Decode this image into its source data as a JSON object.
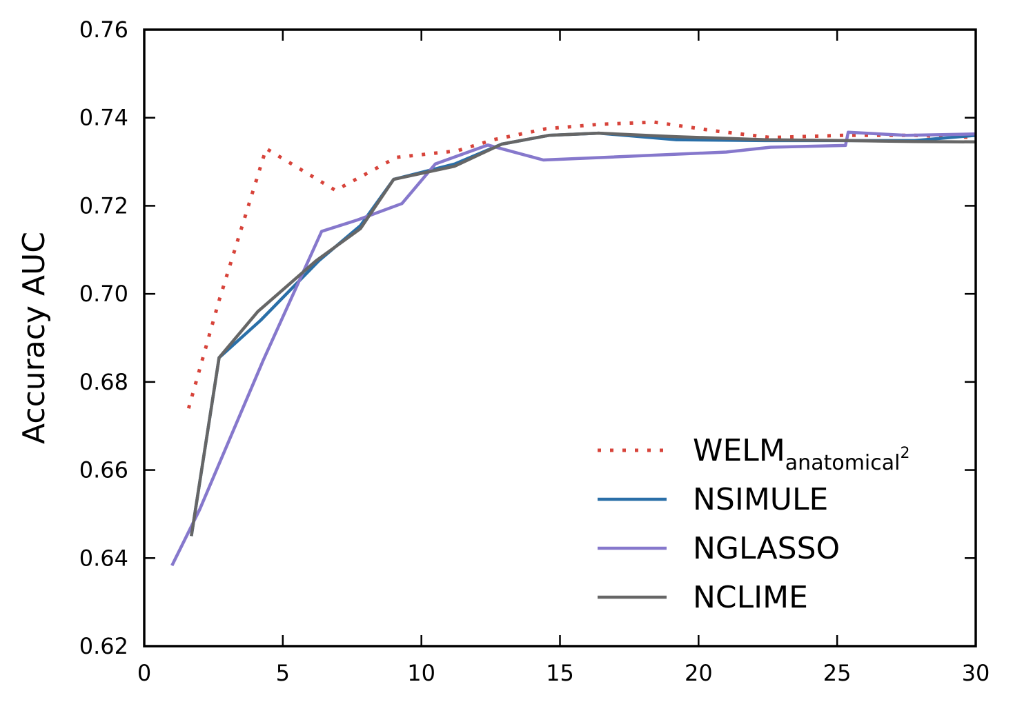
{
  "chart_data": {
    "type": "line",
    "title": "",
    "xlabel": "",
    "ylabel": "Accuracy AUC",
    "xlim": [
      0,
      30
    ],
    "ylim": [
      0.62,
      0.76
    ],
    "xticks": [
      0,
      5,
      10,
      15,
      20,
      25,
      30
    ],
    "xtick_labels": [
      "0",
      "5",
      "10",
      "15",
      "20",
      "25",
      "30"
    ],
    "yticks": [
      0.62,
      0.64,
      0.66,
      0.68,
      0.7,
      0.72,
      0.74,
      0.76
    ],
    "ytick_labels": [
      "0.62",
      "0.64",
      "0.66",
      "0.68",
      "0.70",
      "0.72",
      "0.74",
      "0.76"
    ],
    "grid": false,
    "legend_position": "lower-right",
    "series": [
      {
        "name": "WELM",
        "name_subscript": "anatomical",
        "name_superscript": "2",
        "color": "#d7433a",
        "style": "dotted",
        "x": [
          1.6,
          2.7,
          4.4,
          6.9,
          9.1,
          11.3,
          12.6,
          14.5,
          16.4,
          18.4,
          20.6,
          22.6,
          25.2,
          27.8,
          30.0
        ],
        "y": [
          0.674,
          0.6985,
          0.733,
          0.7235,
          0.731,
          0.7325,
          0.735,
          0.7375,
          0.7385,
          0.739,
          0.737,
          0.7355,
          0.736,
          0.736,
          0.7355
        ]
      },
      {
        "name": "NSIMULE",
        "color": "#2a6fa8",
        "style": "solid",
        "x": [
          1.7,
          2.7,
          4.2,
          6.3,
          7.8,
          9.0,
          11.2,
          12.9,
          14.6,
          16.4,
          19.2,
          22.4,
          25.4,
          27.8,
          30.0
        ],
        "y": [
          0.645,
          0.6855,
          0.694,
          0.7075,
          0.7155,
          0.726,
          0.7295,
          0.734,
          0.736,
          0.7365,
          0.735,
          0.7348,
          0.7348,
          0.7348,
          0.736
        ]
      },
      {
        "name": "NGLASSO",
        "color": "#8678cc",
        "style": "solid",
        "x": [
          1.0,
          2.0,
          4.3,
          6.4,
          7.7,
          9.3,
          10.5,
          12.4,
          14.4,
          16.6,
          21.0,
          22.6,
          25.3,
          25.4,
          27.5,
          30.0
        ],
        "y": [
          0.6383,
          0.651,
          0.685,
          0.7142,
          0.7168,
          0.7205,
          0.7295,
          0.7338,
          0.7304,
          0.731,
          0.7322,
          0.7333,
          0.7337,
          0.7367,
          0.736,
          0.7363
        ]
      },
      {
        "name": "NCLIME",
        "color": "#666666",
        "style": "solid",
        "x": [
          1.7,
          2.7,
          4.1,
          6.2,
          7.8,
          9.0,
          11.2,
          12.9,
          14.6,
          16.4,
          19.2,
          22.4,
          25.4,
          27.8,
          30.0
        ],
        "y": [
          0.645,
          0.6855,
          0.696,
          0.7075,
          0.7148,
          0.726,
          0.729,
          0.734,
          0.736,
          0.7365,
          0.7357,
          0.735,
          0.7348,
          0.7346,
          0.7345
        ]
      }
    ]
  }
}
